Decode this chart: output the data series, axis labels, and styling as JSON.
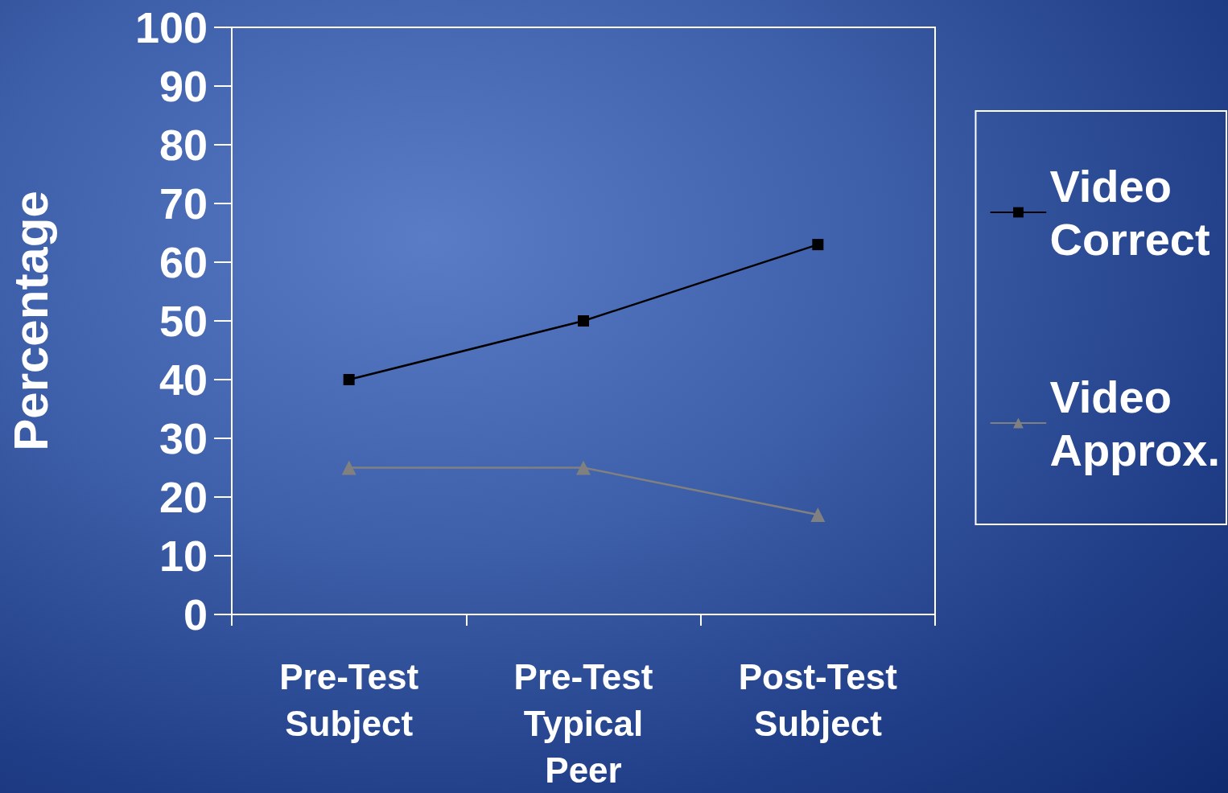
{
  "chart_data": {
    "type": "line",
    "ylabel": "Percentage",
    "categories": [
      "Pre-Test Subject",
      "Pre-Test Typical Peer",
      "Post-Test Subject"
    ],
    "series": [
      {
        "name": "Video Correct",
        "color": "#000000",
        "marker": "square",
        "values": [
          40,
          50,
          63
        ]
      },
      {
        "name": "Video Approx.",
        "color": "#808080",
        "marker": "triangle",
        "values": [
          25,
          25,
          17
        ]
      }
    ],
    "ylim": [
      0,
      100
    ],
    "yticks": [
      0,
      10,
      20,
      30,
      40,
      50,
      60,
      70,
      80,
      90,
      100
    ],
    "grid": false,
    "legend": "right",
    "line_style": "solid"
  }
}
